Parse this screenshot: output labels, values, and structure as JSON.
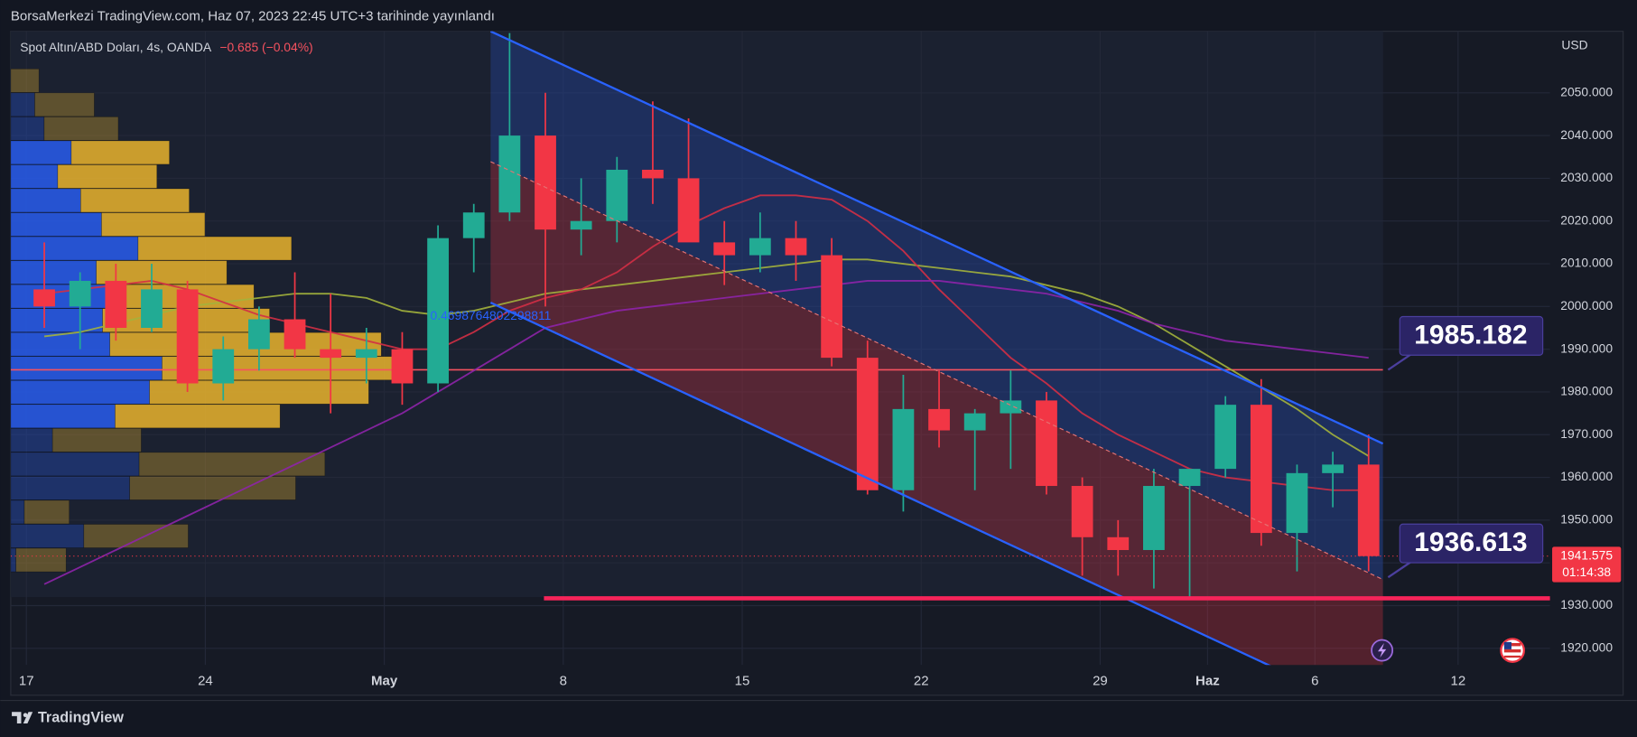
{
  "header": {
    "text": "BorsaMerkezi TradingView.com, Haz 07, 2023 22:45 UTC+3 tarihinde yayınlandı"
  },
  "footer": {
    "brand": "TradingView"
  },
  "chart_data": {
    "type": "candlestick",
    "title": "Spot Altın/ABD Doları, 4s, OANDA",
    "change": "−0.685 (−0.04%)",
    "y_unit": "USD",
    "countdown": "01:14:38",
    "x": [
      0.5,
      1.5,
      2.5,
      3.5,
      4.5,
      5.5,
      6.5,
      7.5,
      8.5,
      9.5,
      10.5,
      11.5,
      12.5,
      13.5,
      14.5,
      15.5,
      16.5,
      17.5,
      18.5,
      19.5,
      20.5,
      21.5,
      22.5,
      23.5,
      24.5,
      25.5,
      26.5,
      27.5,
      28.5,
      29.5,
      30.5,
      31.5,
      32.5,
      33.5,
      34.5,
      35.5,
      36.5,
      37.5
    ],
    "open": [
      2004,
      2000,
      2006,
      1995,
      2004,
      1982,
      1990,
      1997,
      1990,
      1988,
      1990,
      1982,
      2016,
      2022,
      2040,
      2018,
      2020,
      2032,
      2030,
      2015,
      2012,
      2016,
      2012,
      1988,
      1957,
      1976,
      1971,
      1975,
      1978,
      1958,
      1946,
      1943,
      1958,
      1962,
      1977,
      1947,
      1961,
      1963
    ],
    "high": [
      2015,
      2008,
      2010,
      2010,
      2006,
      1993,
      2000,
      2008,
      2003,
      1995,
      1994,
      2019,
      2024,
      2064,
      2050,
      2030,
      2035,
      2048,
      2044,
      2020,
      2022,
      2020,
      2016,
      1992,
      1984,
      1985,
      1976,
      1985,
      1980,
      1960,
      1950,
      1962,
      1962,
      1979,
      1983,
      1963,
      1966,
      1970
    ],
    "low": [
      1995,
      1990,
      1992,
      1994,
      1980,
      1978,
      1985,
      1988,
      1975,
      1982,
      1977,
      1980,
      2008,
      2020,
      2000,
      2012,
      2015,
      2024,
      2016,
      2005,
      2008,
      2006,
      1986,
      1956,
      1952,
      1967,
      1957,
      1962,
      1956,
      1937,
      1937,
      1934,
      1932,
      1960,
      1944,
      1938,
      1953,
      1938
    ],
    "close": [
      2000,
      2006,
      1995,
      2004,
      1982,
      1990,
      1997,
      1990,
      1988,
      1990,
      1982,
      2016,
      2022,
      2040,
      2018,
      2020,
      2032,
      2030,
      2015,
      2012,
      2016,
      2012,
      1988,
      1957,
      1976,
      1971,
      1975,
      1978,
      1958,
      1946,
      1943,
      1958,
      1962,
      1977,
      1947,
      1961,
      1963,
      1941.575
    ],
    "colors": {
      "up": "#22ab94",
      "down": "#f23645"
    },
    "moving_averages": [
      {
        "color": "#a3b23c",
        "values": [
          1993,
          1994,
          1996,
          1998,
          2000,
          2001,
          2002,
          2003,
          2003,
          2002,
          1999,
          1998,
          1999,
          2001,
          2003,
          2004,
          2005,
          2006,
          2007,
          2008,
          2009,
          2010,
          2011,
          2011,
          2010,
          2009,
          2008,
          2007,
          2005,
          2003,
          2000,
          1996,
          1991,
          1986,
          1981,
          1976,
          1970,
          1965
        ]
      },
      {
        "color": "#d32f45",
        "values": [
          2003,
          2004,
          2005,
          2006,
          2004,
          2001,
          1998,
          1996,
          1994,
          1992,
          1990,
          1990,
          1994,
          1999,
          2002,
          2004,
          2008,
          2014,
          2019,
          2023,
          2026,
          2026,
          2025,
          2020,
          2013,
          2004,
          1996,
          1988,
          1982,
          1975,
          1970,
          1966,
          1962,
          1960,
          1959,
          1958,
          1957,
          1957
        ]
      },
      {
        "color": "#8e24aa",
        "values": [
          1935,
          1939,
          1943,
          1947,
          1951,
          1955,
          1959,
          1963,
          1967,
          1971,
          1975,
          1980,
          1985,
          1990,
          1995,
          1997,
          1999,
          2000,
          2001,
          2002,
          2003,
          2004,
          2005,
          2006,
          2006,
          2006,
          2005,
          2004,
          2003,
          2001,
          1999,
          1996,
          1994,
          1992,
          1991,
          1990,
          1989,
          1988
        ]
      }
    ],
    "channel": {
      "upper": {
        "x": [
          12.97,
          37.9
        ],
        "y": [
          2064.4,
          1967.9
        ],
        "color": "#2962ff"
      },
      "middle": {
        "x": [
          12.97,
          37.9
        ],
        "y": [
          2033.9,
          1936.1
        ],
        "color": "#e57373"
      },
      "lower": {
        "x": [
          12.97,
          37.9
        ],
        "y": [
          2000.9,
          1903.6
        ],
        "color": "#2962ff"
      }
    },
    "levels": [
      {
        "value": 1985.182,
        "color": "#f7525f"
      }
    ],
    "support": {
      "value": 1931.7,
      "x_start": 14.46,
      "color": "#f7245a"
    },
    "callouts": [
      {
        "value": 1985.182
      },
      {
        "value": 1936.613
      }
    ],
    "annotation": "0.4698764802298811",
    "volume_profile": {
      "range": [
        1937.8,
        2055.6
      ],
      "value_area": [
        1971.6,
        2039.0
      ],
      "buy": [
        0,
        23,
        32,
        58,
        45,
        67,
        87,
        122,
        82,
        94,
        88,
        95,
        145,
        133,
        100,
        40,
        123,
        114,
        13,
        70,
        5
      ],
      "sell": [
        27,
        57,
        71,
        94,
        95,
        104,
        99,
        147,
        125,
        139,
        160,
        260,
        225,
        210,
        158,
        85,
        178,
        159,
        43,
        100,
        48
      ]
    },
    "xlim": [
      -0.437,
      42.57
    ],
    "ylim": [
      1916.1,
      2064.4
    ],
    "xticks": [
      {
        "value": 0,
        "label": "17"
      },
      {
        "value": 5,
        "label": "24"
      },
      {
        "value": 10,
        "label": "May"
      },
      {
        "value": 15,
        "label": "8"
      },
      {
        "value": 20,
        "label": "15"
      },
      {
        "value": 25,
        "label": "22"
      },
      {
        "value": 30,
        "label": "29"
      },
      {
        "value": 33,
        "label": "Haz"
      },
      {
        "value": 36,
        "label": "6"
      },
      {
        "value": 40,
        "label": "12"
      }
    ],
    "yticks": [
      {
        "value": 1920,
        "label": "1920.000"
      },
      {
        "value": 1930,
        "label": "1930.000"
      },
      {
        "value": 1940,
        "label": "1940.000"
      },
      {
        "value": 1950,
        "label": "1950.000"
      },
      {
        "value": 1960,
        "label": "1960.000"
      },
      {
        "value": 1970,
        "label": "1970.000"
      },
      {
        "value": 1980,
        "label": "1980.000"
      },
      {
        "value": 1990,
        "label": "1990.000"
      },
      {
        "value": 2000,
        "label": "2000.000"
      },
      {
        "value": 2010,
        "label": "2010.000"
      },
      {
        "value": 2020,
        "label": "2020.000"
      },
      {
        "value": 2030,
        "label": "2030.000"
      },
      {
        "value": 2040,
        "label": "2040.000"
      },
      {
        "value": 2050,
        "label": "2050.000"
      }
    ],
    "grid": true
  }
}
